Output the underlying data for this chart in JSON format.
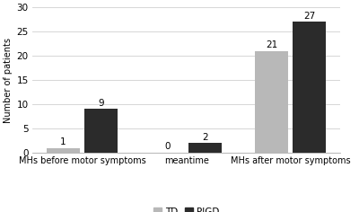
{
  "categories": [
    "MHs before motor symptoms",
    "meantime",
    "MHs after motor symptoms"
  ],
  "td_values": [
    1,
    0,
    21
  ],
  "pigd_values": [
    9,
    2,
    27
  ],
  "td_color": "#b8b8b8",
  "pigd_color": "#2b2b2b",
  "ylabel": "Number of patients",
  "ylim": [
    0,
    30
  ],
  "yticks": [
    0,
    5,
    10,
    15,
    20,
    25,
    30
  ],
  "legend_labels": [
    "TD",
    "PIGD"
  ],
  "bar_width": 0.32,
  "font_size_ylabel": 7,
  "font_size_xticks": 7,
  "font_size_yticks": 7.5,
  "font_size_values": 7.5,
  "font_size_legend": 7.5,
  "background_color": "#ffffff",
  "grid_color": "#d0d0d0",
  "bar_gap": 0.04
}
